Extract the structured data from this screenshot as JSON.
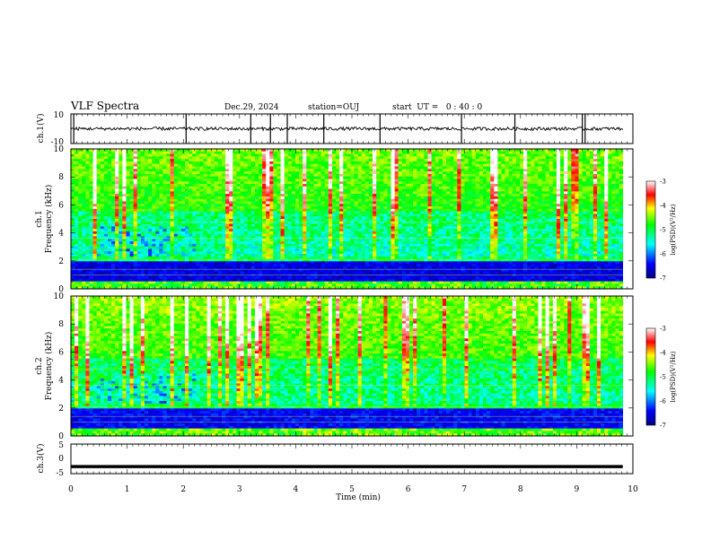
{
  "header": {
    "title": "VLF Spectra",
    "date": "Dec.29, 2024",
    "station": "station=OUJ",
    "start": "start  UT =   0 : 40 : 0"
  },
  "chart_data": [
    {
      "panel": "ch1-waveform",
      "type": "line",
      "ylabel": "ch.1(V)",
      "ylim": [
        -10,
        10
      ],
      "y_ticks": [
        "10",
        "-10"
      ],
      "baseline": 0,
      "spike_times_min": [
        0.05,
        2.05,
        3.2,
        3.55,
        3.85,
        4.5,
        5.5,
        6.95,
        7.9,
        9.1,
        9.15
      ],
      "color": "#000000"
    },
    {
      "panel": "ch1-spectrogram",
      "type": "heatmap",
      "ylabel": "ch.1\nFrequency (kHz)",
      "xlim": [
        0,
        10
      ],
      "ylim": [
        0,
        10
      ],
      "y_ticks": [
        "0",
        "2",
        "4",
        "6",
        "8",
        "10"
      ],
      "data_end_min": 9.82,
      "colorbar": {
        "label": "log(PSD)(V²/Hz)",
        "range": [
          -7,
          -3
        ],
        "ticks": [
          "-3",
          "-4",
          "-5",
          "-6",
          "-7"
        ]
      }
    },
    {
      "panel": "ch2-spectrogram",
      "type": "heatmap",
      "ylabel": "ch.2\nFrequency (kHz)",
      "xlim": [
        0,
        10
      ],
      "ylim": [
        0,
        10
      ],
      "y_ticks": [
        "0",
        "2",
        "4",
        "6",
        "8",
        "10"
      ],
      "data_end_min": 9.82,
      "colorbar": {
        "label": "log(PSD)(V²/Hz)",
        "range": [
          -7,
          -3
        ],
        "ticks": [
          "-3",
          "-4",
          "-5",
          "-6",
          "-7"
        ]
      }
    },
    {
      "panel": "ch3-waveform",
      "type": "line",
      "ylabel": "ch.3(V)",
      "ylim": [
        -5,
        5
      ],
      "y_ticks": [
        "5",
        "0",
        "-5"
      ],
      "level": -2.6,
      "color": "#000000"
    }
  ],
  "xaxis": {
    "label": "Time (min)",
    "ticks": [
      "0",
      "1",
      "2",
      "3",
      "4",
      "5",
      "6",
      "7",
      "8",
      "9",
      "10"
    ],
    "range": [
      0,
      10
    ]
  }
}
